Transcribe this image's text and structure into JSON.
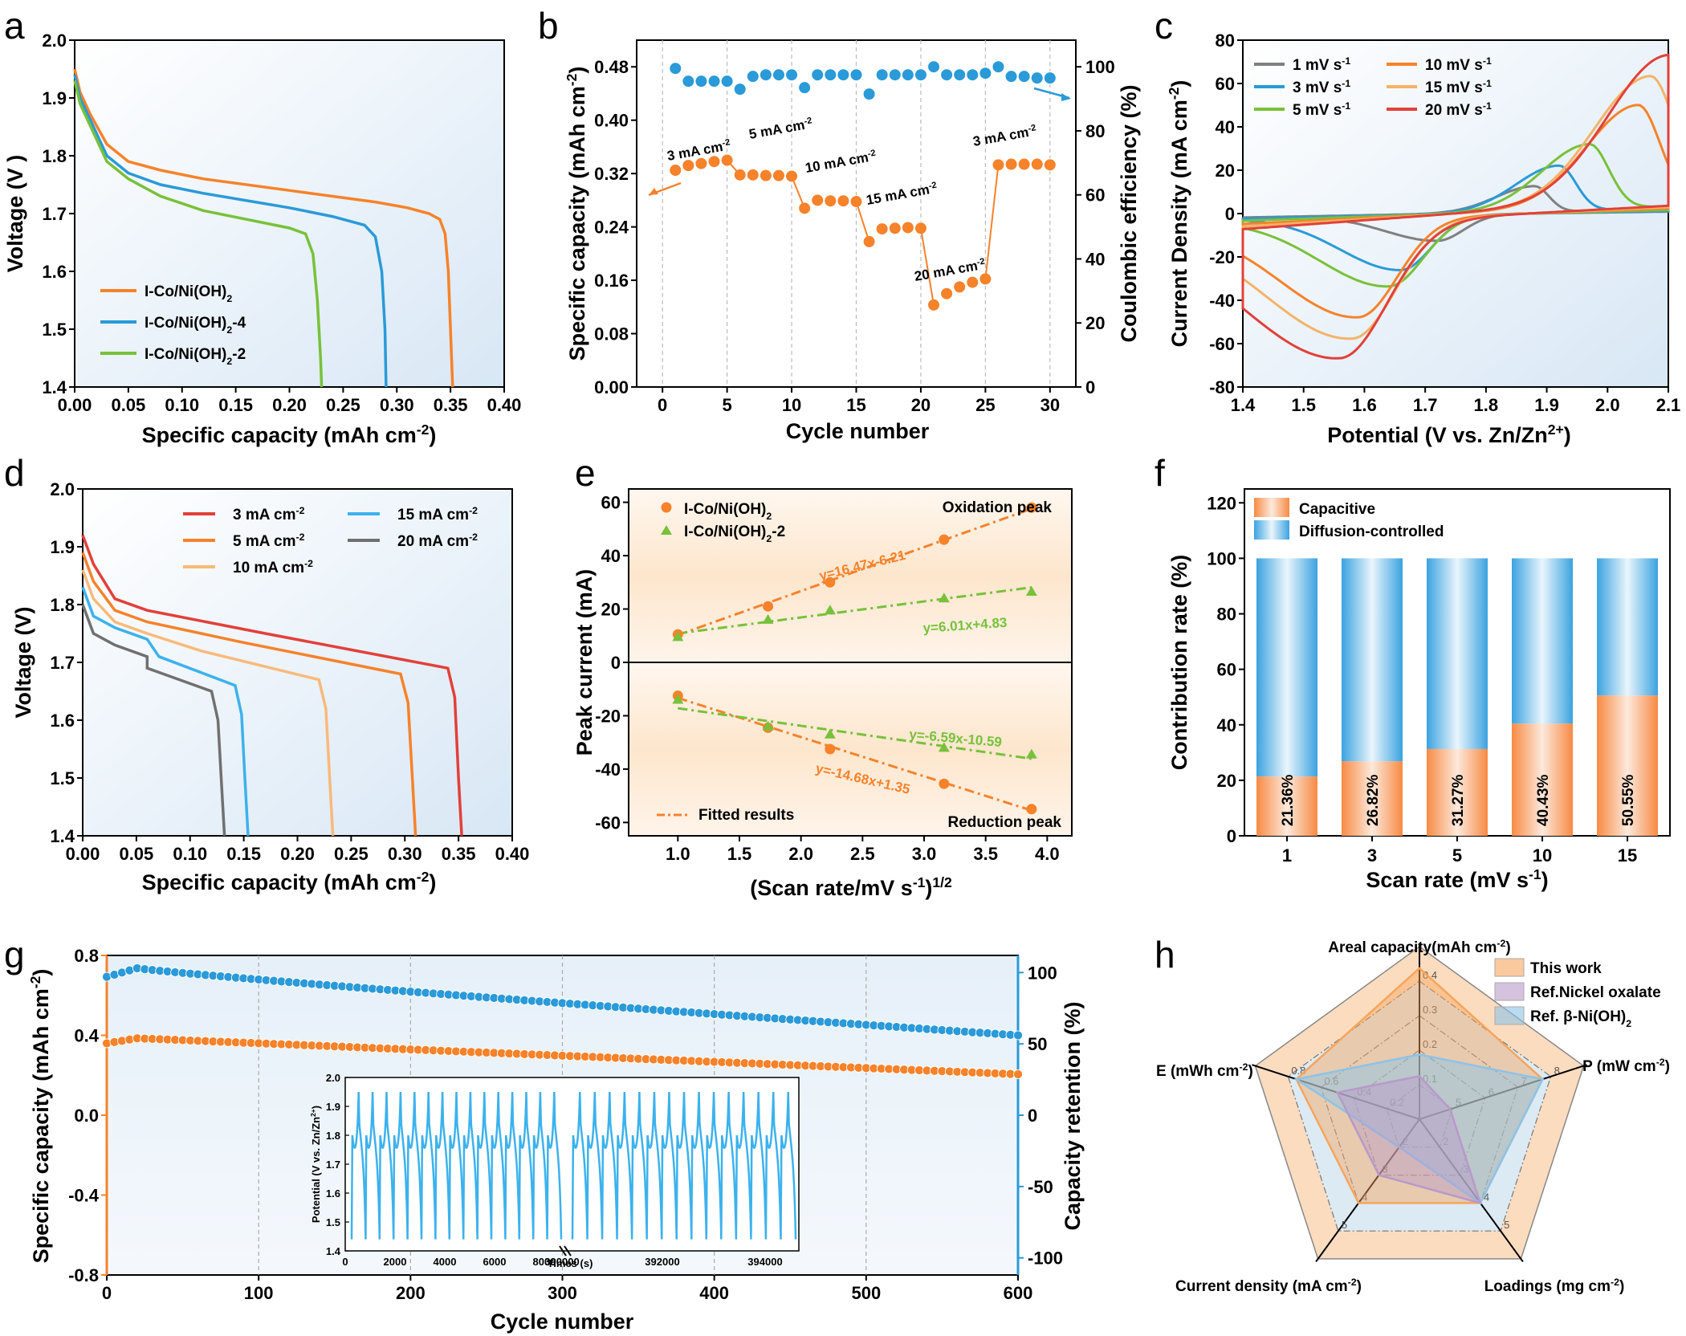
{
  "colors": {
    "orange": "#f6822a",
    "blue": "#2a9ad8",
    "green": "#78c13a",
    "gray": "#808080",
    "red": "#e2403a",
    "lightorange": "#f9b97a",
    "cyan": "#3cb2ec",
    "bg": "#e7f0f9",
    "bgwarm": "#fdefe1"
  },
  "panel_letters": [
    "a",
    "b",
    "c",
    "d",
    "e",
    "f",
    "g",
    "h"
  ],
  "chart_data": [
    {
      "id": "a",
      "type": "line",
      "xlabel": "Specific capacity (mAh cm",
      "xlabel_sup": "-2",
      "xlabel_end": ")",
      "ylabel": "Voltage (V )",
      "xlim": [
        0,
        0.4
      ],
      "ylim": [
        1.4,
        2.0
      ],
      "xticks": [
        "0.00",
        "0.05",
        "0.10",
        "0.15",
        "0.20",
        "0.25",
        "0.30",
        "0.35",
        "0.40"
      ],
      "yticks": [
        "1.4",
        "1.5",
        "1.6",
        "1.7",
        "1.8",
        "1.9",
        "2.0"
      ],
      "series": [
        {
          "name": "I-Co/Ni(OH)",
          "sub": "2",
          "suffix": "",
          "color": "#f6822a",
          "points": [
            [
              0,
              1.95
            ],
            [
              0.005,
              1.91
            ],
            [
              0.015,
              1.87
            ],
            [
              0.03,
              1.82
            ],
            [
              0.05,
              1.79
            ],
            [
              0.08,
              1.775
            ],
            [
              0.12,
              1.76
            ],
            [
              0.2,
              1.74
            ],
            [
              0.28,
              1.72
            ],
            [
              0.31,
              1.71
            ],
            [
              0.33,
              1.7
            ],
            [
              0.34,
              1.69
            ],
            [
              0.345,
              1.665
            ],
            [
              0.348,
              1.6
            ],
            [
              0.35,
              1.5
            ],
            [
              0.352,
              1.4
            ]
          ]
        },
        {
          "name": "I-Co/Ni(OH)",
          "sub": "2",
          "suffix": "-4",
          "color": "#2a9ad8",
          "points": [
            [
              0,
              1.94
            ],
            [
              0.005,
              1.9
            ],
            [
              0.015,
              1.86
            ],
            [
              0.03,
              1.8
            ],
            [
              0.05,
              1.77
            ],
            [
              0.08,
              1.75
            ],
            [
              0.12,
              1.735
            ],
            [
              0.2,
              1.71
            ],
            [
              0.24,
              1.695
            ],
            [
              0.27,
              1.68
            ],
            [
              0.28,
              1.66
            ],
            [
              0.286,
              1.6
            ],
            [
              0.289,
              1.5
            ],
            [
              0.29,
              1.4
            ]
          ]
        },
        {
          "name": "I-Co/Ni(OH)",
          "sub": "2",
          "suffix": "-2",
          "color": "#78c13a",
          "points": [
            [
              0,
              1.93
            ],
            [
              0.005,
              1.89
            ],
            [
              0.015,
              1.85
            ],
            [
              0.03,
              1.79
            ],
            [
              0.05,
              1.76
            ],
            [
              0.08,
              1.73
            ],
            [
              0.12,
              1.705
            ],
            [
              0.16,
              1.69
            ],
            [
              0.2,
              1.675
            ],
            [
              0.215,
              1.665
            ],
            [
              0.222,
              1.63
            ],
            [
              0.226,
              1.55
            ],
            [
              0.229,
              1.45
            ],
            [
              0.23,
              1.4
            ]
          ]
        }
      ]
    },
    {
      "id": "b",
      "type": "scatter",
      "xlabel": "Cycle number",
      "ylabel": "Specific capacity (mAh cm",
      "ylabel_sup": "-2",
      "ylabel_end": ")",
      "y2label": "Coulombic  efficiency (%)",
      "xlim": [
        -2,
        32
      ],
      "ylim": [
        0,
        0.52
      ],
      "y2lim": [
        0,
        108.33
      ],
      "xticks": [
        "0",
        "5",
        "10",
        "15",
        "20",
        "25",
        "30"
      ],
      "yticks": [
        "0.00",
        "0.08",
        "0.16",
        "0.24",
        "0.32",
        "0.40",
        "0.48"
      ],
      "y2ticks": [
        "0",
        "20",
        "40",
        "60",
        "80",
        "100"
      ],
      "capacity": [
        0.325,
        0.332,
        0.335,
        0.338,
        0.34,
        0.318,
        0.318,
        0.317,
        0.317,
        0.316,
        0.268,
        0.28,
        0.279,
        0.279,
        0.278,
        0.218,
        0.237,
        0.238,
        0.239,
        0.238,
        0.123,
        0.14,
        0.15,
        0.157,
        0.162,
        0.333,
        0.334,
        0.334,
        0.334,
        0.333
      ],
      "efficiency": [
        99.5,
        95.5,
        95.5,
        95.5,
        95.5,
        93,
        97,
        97.5,
        97.5,
        97.5,
        93.5,
        97.5,
        97.5,
        97.5,
        97.5,
        91.5,
        97.5,
        97.5,
        97.5,
        97.5,
        100,
        97.5,
        97.5,
        97.5,
        98,
        100,
        97,
        97,
        96.5,
        96.5
      ],
      "annotations": [
        "3 mA cm",
        "5 mA cm",
        "10 mA cm",
        "15 mA cm",
        "20 mA cm",
        "3 mA cm"
      ],
      "ann_sup": "-2"
    },
    {
      "id": "c",
      "type": "line",
      "xlabel": "Potential (V vs. Zn/Zn",
      "xlabel_sup": "2+",
      "xlabel_end": ")",
      "ylabel": "Current Density (mA cm",
      "ylabel_sup": "-2",
      "ylabel_end": ")",
      "xlim": [
        1.4,
        2.1
      ],
      "ylim": [
        -80,
        80
      ],
      "xticks": [
        "1.4",
        "1.5",
        "1.6",
        "1.7",
        "1.8",
        "1.9",
        "2.0",
        "2.1"
      ],
      "yticks": [
        "-80",
        "-60",
        "-40",
        "-20",
        "0",
        "20",
        "40",
        "60",
        "80"
      ],
      "series": [
        {
          "name": "1 mV s",
          "sup": "-1",
          "color": "#808080",
          "oxpeak": [
            1.88,
            12
          ],
          "redpeak": [
            1.72,
            -12
          ],
          "vmax": 2.1,
          "amp": 6
        },
        {
          "name": "3 mV s",
          "sup": "-1",
          "color": "#2a9ad8",
          "oxpeak": [
            1.92,
            21
          ],
          "redpeak": [
            1.66,
            -25
          ],
          "vmax": 2.1,
          "amp": 8
        },
        {
          "name": "5 mV s",
          "sup": "-1",
          "color": "#78c13a",
          "oxpeak": [
            1.97,
            30
          ],
          "redpeak": [
            1.64,
            -32
          ],
          "vmax": 2.1,
          "amp": 11
        },
        {
          "name": "10 mV s",
          "sup": "-1",
          "color": "#f6822a",
          "oxpeak": [
            2.05,
            46
          ],
          "redpeak": [
            1.59,
            -45
          ],
          "vmax": 2.1,
          "amp": 16
        },
        {
          "name": "15 mV s",
          "sup": "-1",
          "color": "#f4b368",
          "oxpeak": [
            2.07,
            58
          ],
          "redpeak": [
            1.58,
            -54
          ],
          "vmax": 2.1,
          "amp": 20
        },
        {
          "name": "20 mV s",
          "sup": "-1",
          "color": "#e2403a",
          "oxpeak": [
            2.1,
            66
          ],
          "redpeak": [
            1.56,
            -62
          ],
          "vmax": 2.1,
          "amp": 24
        }
      ]
    },
    {
      "id": "d",
      "type": "line",
      "xlabel": "Specific capacity (mAh cm",
      "xlabel_sup": "-2",
      "xlabel_end": ")",
      "ylabel": "Voltage (V)",
      "xlim": [
        0,
        0.4
      ],
      "ylim": [
        1.4,
        2.0
      ],
      "xticks": [
        "0.00",
        "0.05",
        "0.10",
        "0.15",
        "0.20",
        "0.25",
        "0.30",
        "0.35",
        "0.40"
      ],
      "yticks": [
        "1.4",
        "1.5",
        "1.6",
        "1.7",
        "1.8",
        "1.9",
        "2.0"
      ],
      "series": [
        {
          "name": "3 mA cm",
          "sup": "-2",
          "color": "#e2403a",
          "end": 0.353,
          "v0": 1.92,
          "plateau": [
            1.79,
            1.69
          ],
          "knee": 0.34
        },
        {
          "name": "5 mA cm",
          "sup": "-2",
          "color": "#f6822a",
          "end": 0.31,
          "v0": 1.89,
          "plateau": [
            1.77,
            1.68
          ],
          "knee": 0.296
        },
        {
          "name": "10 mA cm",
          "sup": "-2",
          "color": "#f9b97a",
          "end": 0.233,
          "v0": 1.86,
          "plateau": [
            1.75,
            1.67
          ],
          "knee": 0.22
        },
        {
          "name": "15 mA cm",
          "sup": "-2",
          "color": "#3cb2ec",
          "end": 0.154,
          "v0": 1.83,
          "plateau": [
            1.74,
            1.66
          ],
          "knee": 0.142
        },
        {
          "name": "20 mA cm",
          "sup": "-2",
          "color": "#707070",
          "end": 0.132,
          "v0": 1.8,
          "plateau": [
            1.71,
            1.65
          ],
          "knee": 0.12
        }
      ]
    },
    {
      "id": "e",
      "type": "scatter",
      "xlabel": "(Scan rate/mV s",
      "xlabel_sup": "-1",
      "xlabel_end": ")",
      "xlabel_sup2": "1/2",
      "ylabel": "Peak current (mA)",
      "xlim": [
        0.6,
        4.2
      ],
      "ylim": [
        -65,
        65
      ],
      "xticks": [
        "1.0",
        "1.5",
        "2.0",
        "2.5",
        "3.0",
        "3.5",
        "4.0"
      ],
      "yticks": [
        "-60",
        "-40",
        "-20",
        "0",
        "20",
        "40",
        "60"
      ],
      "x": [
        1.0,
        1.732,
        2.236,
        3.162,
        3.873
      ],
      "ox1": [
        10.5,
        21,
        30,
        46,
        58
      ],
      "ox2": [
        9.5,
        16,
        19.5,
        24,
        26.5
      ],
      "red1": [
        -12.5,
        -24.5,
        -32.5,
        -45.5,
        -55
      ],
      "red2": [
        -14,
        -24,
        -27,
        -32,
        -34.5
      ],
      "fits": {
        "ox1": [
          16.47,
          -6.21
        ],
        "ox2": [
          6.01,
          4.83
        ],
        "red1": [
          -14.68,
          1.35
        ],
        "red2": [
          -6.59,
          -10.59
        ]
      },
      "eq": [
        "y=16.47x-6.21",
        "y=6.01x+4.83",
        "y=-6.59x-10.59",
        "y=-14.68x+1.35"
      ],
      "legend": [
        {
          "name": "I-Co/Ni(OH)",
          "sub": "2",
          "suffix": ""
        },
        {
          "name": "I-Co/Ni(OH)",
          "sub": "2",
          "suffix": "-2"
        }
      ],
      "fitted_label": "Fitted results",
      "ox_label": "Oxidation peak",
      "red_label": "Reduction peak"
    },
    {
      "id": "f",
      "type": "bar",
      "xlabel": "Scan rate (mV s",
      "xlabel_sup": "-1",
      "xlabel_end": ")",
      "ylabel": "Contribution rate (%)",
      "categories": [
        "1",
        "3",
        "5",
        "10",
        "15"
      ],
      "capacitive": [
        21.36,
        26.82,
        31.27,
        40.43,
        50.55
      ],
      "labels": [
        "21.36%",
        "26.82%",
        "31.27%",
        "40.43%",
        "50.55%"
      ],
      "ylim": [
        0,
        125
      ],
      "yticks": [
        "0",
        "20",
        "40",
        "60",
        "80",
        "100",
        "120"
      ],
      "legend": [
        "Capacitive",
        "Diffusion-controlled"
      ]
    },
    {
      "id": "g",
      "type": "scatter",
      "xlabel": "Cycle number",
      "ylabel": "Specific capacity (mAh cm",
      "ylabel_sup": "-2",
      "ylabel_end": ")",
      "y2label": "Capacity retention (%)",
      "xlim": [
        0,
        600
      ],
      "ylim": [
        -0.8,
        0.8
      ],
      "y2lim": [
        -112,
        112
      ],
      "xticks": [
        "0",
        "100",
        "200",
        "300",
        "400",
        "500",
        "600"
      ],
      "yticks": [
        "-0.8",
        "-0.4",
        "0.0",
        "0.4",
        "0.8"
      ],
      "y2ticks": [
        "-100",
        "-50",
        "0",
        "50",
        "100"
      ],
      "capacity": {
        "start": 0.36,
        "peak": 0.385,
        "end": 0.205
      },
      "retention": {
        "start": 97,
        "peak": 103,
        "end": 56
      },
      "inset": {
        "xlabel": "Times (s)",
        "ylabel": "Potential (V vs. Zn/Zn",
        "ylabel_sup": "2+",
        "ylabel_end": ")",
        "xticks": [
          "0",
          "2000",
          "4000",
          "6000",
          "8000",
          "390000",
          "392000",
          "394000"
        ],
        "yticks": [
          "1.4",
          "1.5",
          "1.6",
          "1.7",
          "1.8",
          "1.9",
          "2.0"
        ]
      }
    },
    {
      "id": "h",
      "type": "radar",
      "axes": [
        {
          "name": "Areal capacity(mAh cm",
          "sup": "-2",
          "end": ")",
          "ticks": [
            "0.1",
            "0.2",
            "0.3",
            "0.4"
          ],
          "max": 0.4
        },
        {
          "name": "P (mW cm",
          "sup": "-2",
          "end": ")",
          "ticks": [
            "5",
            "6",
            "7",
            "8"
          ],
          "max": 8
        },
        {
          "name": "Loadings (mg cm",
          "sup": "-2",
          "end": ")",
          "ticks": [
            "2",
            "3",
            "4",
            "5"
          ],
          "max": 5
        },
        {
          "name": "Current density (mA cm",
          "sup": "-2",
          "end": ")",
          "ticks": [
            "2",
            "3",
            "4",
            "5"
          ],
          "max": 5
        },
        {
          "name": "E (mWh cm",
          "sup": "-2",
          "end": ")",
          "ticks": [
            "0.2",
            "0.4",
            "0.6",
            "0.8"
          ],
          "max": 0.8
        }
      ],
      "series": [
        {
          "name": "This work",
          "color": "#f6a55c",
          "values": [
            0.35,
            6,
            3,
            3,
            0.6
          ]
        },
        {
          "name": "Ref.Nickel oxalate",
          "color": "#b79ac9",
          "values": [
            0.1,
            1.5,
            3,
            2,
            0.4
          ]
        },
        {
          "name": "Ref. β-Ni(OH)",
          "sub": "2",
          "color": "#8cc3e8",
          "values": [
            0.15,
            6,
            3,
            1,
            0.6
          ]
        }
      ]
    }
  ]
}
